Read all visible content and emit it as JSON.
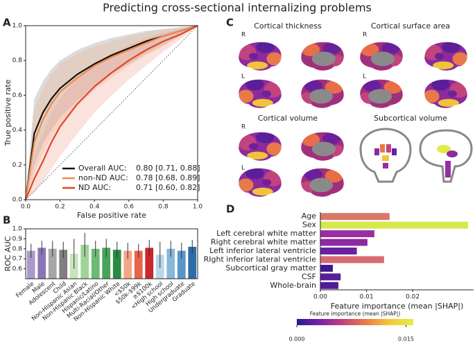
{
  "title": "Predicting cross-sectional internalizing problems",
  "panel_labels": [
    "A",
    "B",
    "C",
    "D"
  ],
  "brain_maps": {
    "titles": [
      "Cortical thickness",
      "Cortical surface area",
      "Cortical volume",
      "Subcortical volume"
    ],
    "hemisphere_labels": [
      "R",
      "L"
    ]
  },
  "chart_data": [
    {
      "type": "line",
      "xlabel": "False positive rate",
      "ylabel": "True positive rate",
      "xlim": [
        0,
        1
      ],
      "ylim": [
        0,
        1
      ],
      "xticks": [
        {
          "value": 0,
          "label": "0.0"
        },
        0.2,
        0.4,
        0.6,
        0.8,
        {
          "value": 1,
          "label": "1.0"
        }
      ],
      "yticks": [
        {
          "value": 0,
          "label": "0.0"
        },
        0.2,
        0.4,
        0.6,
        0.8,
        {
          "value": 1,
          "label": "1.0"
        }
      ],
      "x": [
        0,
        0.05,
        0.1,
        0.15,
        0.2,
        0.3,
        0.4,
        0.5,
        0.6,
        0.7,
        0.8,
        0.9,
        1
      ],
      "series": [
        {
          "name": "Overall AUC:",
          "auc_label": "0.80 [0.71, 0.88]",
          "color": "#111111",
          "band_color": "#8a8a8a",
          "values": [
            0,
            0.38,
            0.5,
            0.58,
            0.64,
            0.72,
            0.78,
            0.83,
            0.87,
            0.91,
            0.94,
            0.97,
            1
          ],
          "lower": [
            0,
            0.2,
            0.32,
            0.4,
            0.47,
            0.57,
            0.65,
            0.72,
            0.78,
            0.84,
            0.89,
            0.94,
            1
          ],
          "upper": [
            0,
            0.58,
            0.68,
            0.75,
            0.8,
            0.86,
            0.9,
            0.93,
            0.95,
            0.97,
            0.98,
            0.99,
            1
          ]
        },
        {
          "name": "non-ND AUC:",
          "auc_label": "0.78 [0.68, 0.89]",
          "color": "#ef8a4c",
          "band_color": "#f2b48e",
          "values": [
            0,
            0.33,
            0.46,
            0.55,
            0.62,
            0.7,
            0.77,
            0.82,
            0.86,
            0.9,
            0.94,
            0.97,
            1
          ],
          "lower": [
            0,
            0.15,
            0.27,
            0.36,
            0.43,
            0.54,
            0.63,
            0.7,
            0.77,
            0.83,
            0.88,
            0.94,
            1
          ],
          "upper": [
            0,
            0.52,
            0.64,
            0.72,
            0.78,
            0.84,
            0.88,
            0.91,
            0.94,
            0.96,
            0.98,
            0.99,
            1
          ]
        },
        {
          "name": "ND AUC:",
          "auc_label": "0.71 [0.60, 0.82]",
          "color": "#e0472b",
          "band_color": "#f0a08e",
          "values": [
            0,
            0.12,
            0.22,
            0.33,
            0.42,
            0.55,
            0.65,
            0.73,
            0.8,
            0.86,
            0.91,
            0.95,
            1
          ],
          "lower": [
            0,
            0.04,
            0.1,
            0.18,
            0.25,
            0.38,
            0.5,
            0.6,
            0.69,
            0.77,
            0.85,
            0.92,
            1
          ],
          "upper": [
            0,
            0.25,
            0.38,
            0.5,
            0.58,
            0.7,
            0.78,
            0.84,
            0.89,
            0.93,
            0.96,
            0.98,
            1
          ]
        }
      ]
    },
    {
      "type": "bar",
      "ylabel": "ROC AUC",
      "ylim": [
        0.5,
        1
      ],
      "yticks": [
        0.6,
        0.7,
        0.8,
        0.9,
        {
          "value": 1,
          "label": "1.0"
        }
      ],
      "categories": [
        "Female",
        "Male",
        "Adolescent",
        "Child",
        "Non-Hispanic Asian",
        "Non-Hispanic Black",
        "Hispanic/Latino",
        "Multi-Racial/Other",
        "Non-Hispanic White",
        "<$50k",
        "$50k-$99k",
        "≥$100k",
        "<High school",
        "High school",
        "Undergraduate",
        "Graduate"
      ],
      "values": [
        0.78,
        0.81,
        0.8,
        0.79,
        0.75,
        0.84,
        0.8,
        0.81,
        0.79,
        0.78,
        0.78,
        0.81,
        0.74,
        0.8,
        0.78,
        0.82
      ],
      "errors": [
        0.07,
        0.07,
        0.08,
        0.08,
        0.15,
        0.12,
        0.08,
        0.09,
        0.08,
        0.08,
        0.07,
        0.08,
        0.13,
        0.08,
        0.08,
        0.07
      ],
      "colors": [
        "#a99bc9",
        "#8a76b5",
        "#a6a6a6",
        "#7f7f7f",
        "#c6e5bd",
        "#9fd39a",
        "#6dbb72",
        "#47a45a",
        "#2a8a45",
        "#f4a488",
        "#e8634a",
        "#c9282c",
        "#b8d6ea",
        "#87b8da",
        "#5796c8",
        "#2d6ca8"
      ]
    },
    {
      "type": "barh",
      "xlabel": "Feature importance (mean |SHAP|)",
      "xlim": [
        0,
        0.0332
      ],
      "xticks": [
        {
          "value": 0,
          "label": "0.00"
        },
        0.01,
        0.02
      ],
      "categories": [
        "Age",
        "Sex",
        "Left cerebral white matter",
        "Right cerebral white matter",
        "Left inferior lateral ventricle",
        "RIght inferior lateral ventricle",
        "Subcortical gray matter",
        "CSF",
        "Whole-brain"
      ],
      "values": [
        0.015,
        0.032,
        0.0117,
        0.0102,
        0.0079,
        0.0138,
        0.0027,
        0.0044,
        0.0039
      ],
      "colors": [
        "#d9786a",
        "#d6e84a",
        "#9a2ea0",
        "#8c2aa0",
        "#6a20a0",
        "#d66b72",
        "#3a1a90",
        "#5a1e98",
        "#521c96"
      ]
    },
    {
      "type": "colorbar",
      "title": "Feature importance (mean |SHAP|)",
      "xlim": [
        0,
        0.016
      ],
      "xticks": [
        {
          "value": 0,
          "label": "0.000"
        },
        {
          "value": 0.015,
          "label": "0.015"
        }
      ],
      "colors": [
        "#2b1b8e",
        "#7a22a8",
        "#c3437b",
        "#ef7d45",
        "#f5c93a",
        "#e2ec46"
      ]
    }
  ]
}
